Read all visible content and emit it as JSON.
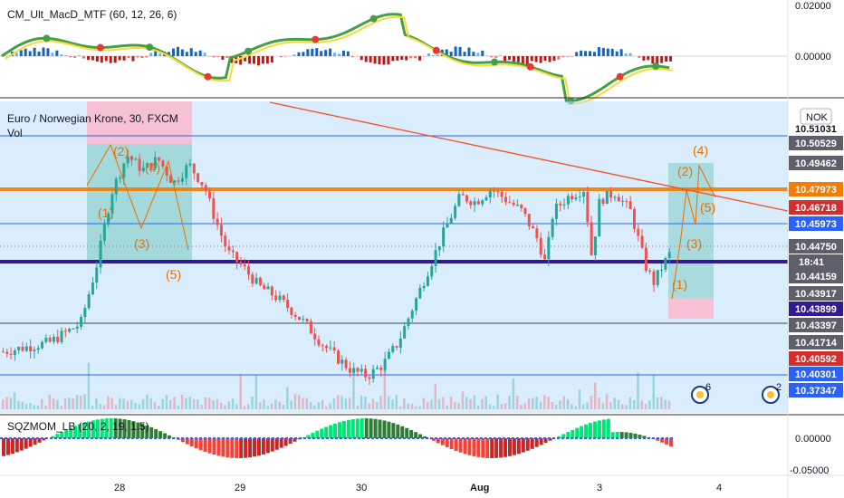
{
  "top_indicator": {
    "title": "CM_Ult_MacD_MTF (60, 12, 26, 6)",
    "ticks": [
      "0.02000",
      "0.00000"
    ]
  },
  "main_chart": {
    "symbol_title": "Euro / Norwegian Krone, 30, FXCM",
    "volume_label": "Vol",
    "currency_badge": "NOK",
    "countdown": "18:41",
    "event_badge_count": "6",
    "event_badge_count_2": "2",
    "price_tags": [
      {
        "text": "10.51031",
        "kind": "plain"
      },
      {
        "text": "10.50529",
        "kind": "gray"
      },
      {
        "text": "10.49462",
        "kind": "gray"
      },
      {
        "text": "10.47973",
        "kind": "orange"
      },
      {
        "text": "10.46718",
        "kind": "red"
      },
      {
        "text": "10.45973",
        "kind": "blue"
      },
      {
        "text": "10.44750",
        "kind": "gray"
      },
      {
        "text": "10.44159",
        "kind": "gray"
      },
      {
        "text": "10.43917",
        "kind": "gray"
      },
      {
        "text": "10.43899",
        "kind": "purple"
      },
      {
        "text": "10.43397",
        "kind": "gray"
      },
      {
        "text": "10.41714",
        "kind": "gray"
      },
      {
        "text": "10.40592",
        "kind": "red"
      },
      {
        "text": "10.40301",
        "kind": "blue"
      },
      {
        "text": "10.37347",
        "kind": "blue"
      }
    ],
    "wave_labels_left": [
      "(1)",
      "(2)",
      "(3)",
      "(4)",
      "(5)"
    ],
    "wave_labels_right": [
      "(1)",
      "(2)",
      "(3)",
      "(4)",
      "(5)"
    ]
  },
  "bottom_indicator": {
    "title": "SQZMOM_LB (20, 2, 19, 1.5)",
    "ticks": [
      "0.00000",
      "-0.05000"
    ]
  },
  "time_axis": {
    "labels": [
      "28",
      "29",
      "30",
      "Aug",
      "3",
      "4"
    ]
  },
  "colors": {
    "bull": "#26a69a",
    "bear": "#ef5350",
    "orange_line": "#f57c00",
    "purple_line": "#311b92",
    "blue_line": "#2962ff",
    "trend_line": "#f4511e",
    "zone_blue": "#bbdefb",
    "zone_pink": "#f8bbd0",
    "zone_teal": "#80cbc4"
  },
  "chart_data": {
    "type": "candlestick",
    "symbol": "Euro / Norwegian Krone",
    "interval": "30",
    "source": "FXCM",
    "levels": [
      10.51031,
      10.47973,
      10.45973,
      10.43899,
      10.40301,
      10.37347
    ],
    "last_price": 10.4475,
    "close_path": [
      [
        0,
        10.395
      ],
      [
        6,
        10.4
      ],
      [
        10,
        10.41
      ],
      [
        12,
        10.44
      ],
      [
        14,
        10.48
      ],
      [
        16,
        10.5
      ],
      [
        18,
        10.492
      ],
      [
        20,
        10.498
      ],
      [
        22,
        10.485
      ],
      [
        24,
        10.495
      ],
      [
        26,
        10.483
      ],
      [
        27,
        10.47
      ],
      [
        29,
        10.448
      ],
      [
        31,
        10.44
      ],
      [
        33,
        10.43
      ],
      [
        35,
        10.425
      ],
      [
        37,
        10.418
      ],
      [
        39,
        10.41
      ],
      [
        41,
        10.4
      ],
      [
        43,
        10.392
      ],
      [
        45,
        10.385
      ],
      [
        47,
        10.382
      ],
      [
        49,
        10.388
      ],
      [
        51,
        10.4
      ],
      [
        53,
        10.42
      ],
      [
        55,
        10.44
      ],
      [
        57,
        10.46
      ],
      [
        59,
        10.478
      ],
      [
        61,
        10.475
      ],
      [
        63,
        10.482
      ],
      [
        65,
        10.476
      ],
      [
        67,
        10.47
      ],
      [
        69,
        10.455
      ],
      [
        70,
        10.442
      ],
      [
        71,
        10.47
      ],
      [
        73,
        10.478
      ],
      [
        75,
        10.482
      ],
      [
        76,
        10.445
      ],
      [
        77,
        10.476
      ],
      [
        79,
        10.48
      ],
      [
        81,
        10.47
      ],
      [
        82,
        10.455
      ],
      [
        83,
        10.44
      ],
      [
        84,
        10.432
      ],
      [
        85,
        10.44
      ],
      [
        86,
        10.447
      ]
    ]
  }
}
